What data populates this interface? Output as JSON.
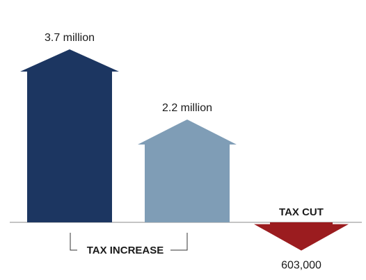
{
  "chart_data": {
    "type": "bar",
    "categories": [
      "",
      "",
      ""
    ],
    "series": [
      {
        "values": [
          3700000,
          2200000,
          -603000
        ]
      }
    ],
    "data_labels": [
      "3.7 million",
      "2.2 million",
      "603,000"
    ],
    "group_labels": {
      "increase": "TAX INCREASE",
      "cut": "TAX CUT"
    },
    "colors": [
      "#1c3661",
      "#7f9db6",
      "#9b1c1f"
    ],
    "mark_shape": "arrow",
    "ylim": [
      -1000000,
      4000000
    ]
  }
}
